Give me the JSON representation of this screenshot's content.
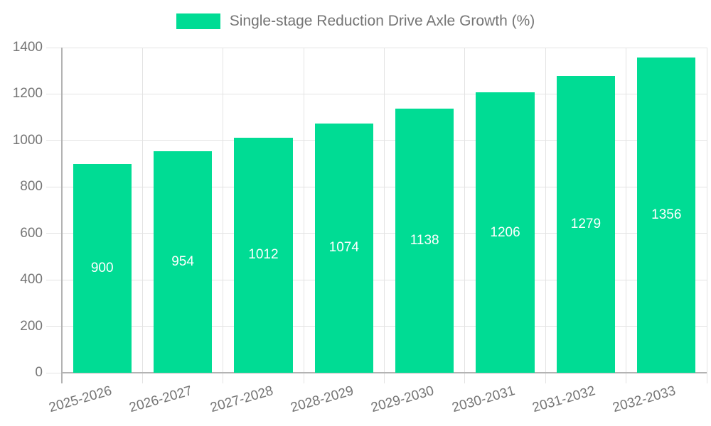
{
  "chart_data": {
    "type": "bar",
    "title": "Single-stage Reduction Drive Axle Growth (%)",
    "legend_position": "top-center",
    "categories": [
      "2025-2026",
      "2026-2027",
      "2027-2028",
      "2028-2029",
      "2029-2030",
      "2030-2031",
      "2031-2032",
      "2032-2033"
    ],
    "values": [
      900,
      954,
      1012,
      1074,
      1138,
      1206,
      1279,
      1356
    ],
    "xlabel": "",
    "ylabel": "",
    "ylim": [
      0,
      1400
    ],
    "yticks": [
      0,
      200,
      400,
      600,
      800,
      1000,
      1200,
      1400
    ],
    "grid": true,
    "x_label_rotation_deg": -16,
    "colors": {
      "bar": "#00dc94",
      "bar_value_text": "#ffffff",
      "axis_text": "#757575",
      "legend_text": "#757575",
      "gridline": "#e3e3e3",
      "axis_line": "#b3b3b3",
      "background": "#ffffff"
    }
  }
}
